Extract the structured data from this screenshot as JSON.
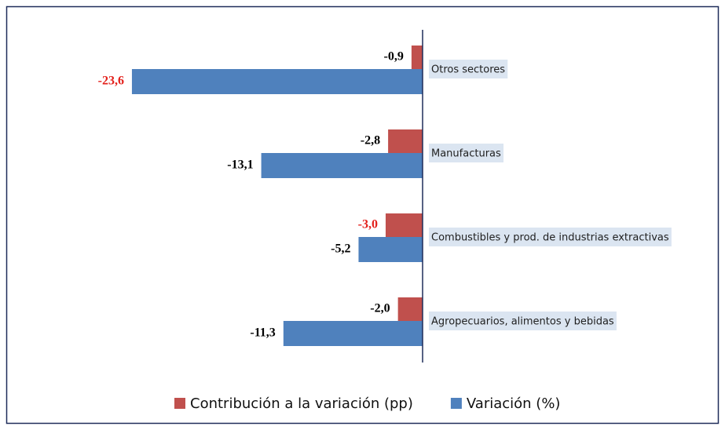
{
  "chart_data": {
    "type": "hbar",
    "categories": [
      "Otros sectores",
      "Manufacturas",
      "Combustibles y prod. de industrias extractivas",
      "Agropecuarios, alimentos y bebidas"
    ],
    "series": [
      {
        "name": "Contribución a la variación (pp)",
        "color": "#c0504d",
        "values": [
          -0.9,
          -2.8,
          -3.0,
          -2.0
        ],
        "value_labels": [
          "-0,9",
          "-2,8",
          "-3,0",
          "-2,0"
        ],
        "value_label_colors": [
          "#000000",
          "#000000",
          "#e3201b",
          "#000000"
        ]
      },
      {
        "name": "Variación (%)",
        "color": "#4f81bd",
        "values": [
          -23.6,
          -13.1,
          -5.2,
          -11.3
        ],
        "value_labels": [
          "-23,6",
          "-13,1",
          "-5,2",
          "-11,3"
        ],
        "value_label_colors": [
          "#e3201b",
          "#000000",
          "#000000",
          "#000000"
        ]
      }
    ],
    "xlim": [
      -25,
      0
    ],
    "legend": "bottom"
  }
}
